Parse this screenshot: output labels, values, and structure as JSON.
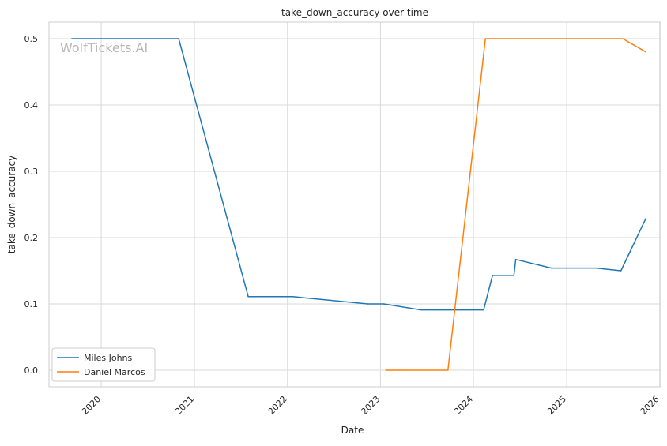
{
  "chart_data": {
    "type": "line",
    "title": "take_down_accuracy over time",
    "xlabel": "Date",
    "ylabel": "take_down_accuracy",
    "watermark": "WolfTickets.AI",
    "grid": true,
    "legend_position": "lower-left",
    "xlim": [
      "2019-06-10",
      "2026-01-05"
    ],
    "ylim": [
      -0.025,
      0.525
    ],
    "x_ticks": [
      "2020",
      "2021",
      "2022",
      "2023",
      "2024",
      "2025",
      "2026"
    ],
    "y_ticks": [
      "0.0",
      "0.1",
      "0.2",
      "0.3",
      "0.4",
      "0.5"
    ],
    "series": [
      {
        "name": "Miles Johns",
        "color": "#1f77b4",
        "points": [
          [
            "2019-09-07",
            0.5
          ],
          [
            "2020-10-31",
            0.5
          ],
          [
            "2021-07-31",
            0.111
          ],
          [
            "2022-01-22",
            0.111
          ],
          [
            "2022-11-12",
            0.1
          ],
          [
            "2023-01-14",
            0.1
          ],
          [
            "2023-06-10",
            0.091
          ],
          [
            "2024-02-10",
            0.091
          ],
          [
            "2024-03-16",
            0.143
          ],
          [
            "2024-06-08",
            0.143
          ],
          [
            "2024-06-15",
            0.167
          ],
          [
            "2024-11-02",
            0.154
          ],
          [
            "2025-04-26",
            0.154
          ],
          [
            "2025-08-02",
            0.15
          ],
          [
            "2025-11-08",
            0.229
          ]
        ]
      },
      {
        "name": "Daniel Marcos",
        "color": "#ff7f0e",
        "points": [
          [
            "2023-01-21",
            0.0
          ],
          [
            "2023-09-23",
            0.0
          ],
          [
            "2024-02-17",
            0.5
          ],
          [
            "2025-08-09",
            0.5
          ],
          [
            "2025-11-08",
            0.48
          ]
        ]
      }
    ]
  }
}
